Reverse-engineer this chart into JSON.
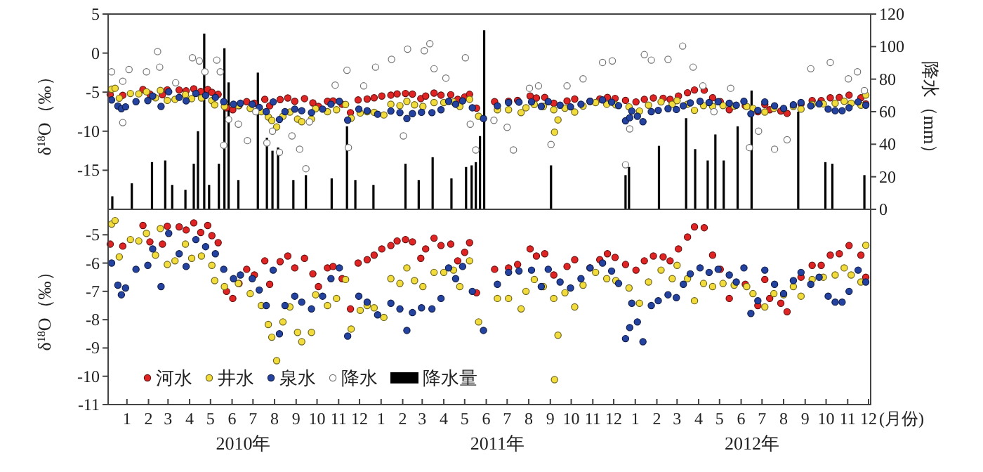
{
  "chart_data": [
    {
      "type": "scatter",
      "ylabel": "δ$^{18}$O（‰）",
      "y2label": "降水（mm）",
      "xlim": [
        "2009-12-05",
        "2012-12-04"
      ],
      "ylim": [
        -20,
        5
      ],
      "yticks": [
        5,
        0,
        -5,
        -10,
        -15
      ],
      "y2lim": [
        0,
        120
      ],
      "y2ticks": [
        0,
        20,
        40,
        60,
        80,
        100,
        120
      ],
      "tick_labels": "y",
      "legend": "bottom",
      "marker": "circle",
      "series": [
        {
          "name": "河水",
          "color": "#e02424",
          "x": [
            "2009-12-08",
            "2009-12-26",
            "2010-01-24",
            "2010-02-03",
            "2010-02-21",
            "2010-02-28",
            "2010-03-17",
            "2010-03-27",
            "2010-04-07",
            "2010-04-17",
            "2010-04-27",
            "2010-05-03",
            "2010-05-12",
            "2010-05-24",
            "2010-06-02",
            "2010-06-11",
            "2010-06-22",
            "2010-07-03",
            "2010-07-18",
            "2010-07-25",
            "2010-08-09",
            "2010-08-20",
            "2010-08-30",
            "2010-09-13",
            "2010-09-25",
            "2010-10-03",
            "2010-10-16",
            "2010-10-24",
            "2010-11-06",
            "2010-11-18",
            "2010-11-29",
            "2010-12-12",
            "2010-12-22",
            "2011-01-02",
            "2011-01-15",
            "2011-01-24",
            "2011-02-05",
            "2011-02-15",
            "2011-02-27",
            "2011-03-06",
            "2011-03-18",
            "2011-03-28",
            "2011-04-11",
            "2011-04-21",
            "2011-05-01",
            "2011-05-08",
            "2011-05-18",
            "2011-06-13",
            "2011-07-03",
            "2011-07-16",
            "2011-08-03",
            "2011-08-12",
            "2011-08-24",
            "2011-09-06",
            "2011-09-25",
            "2011-10-06",
            "2011-10-28",
            "2011-11-11",
            "2011-11-22",
            "2011-12-03",
            "2011-12-18",
            "2012-01-02",
            "2012-01-14",
            "2012-01-27",
            "2012-02-10",
            "2012-02-20",
            "2012-03-03",
            "2012-03-16",
            "2012-03-26",
            "2012-04-09",
            "2012-04-21",
            "2012-05-02",
            "2012-05-15",
            "2012-06-07",
            "2012-06-25",
            "2012-07-05",
            "2012-07-12",
            "2012-07-28",
            "2012-08-06",
            "2012-08-26",
            "2012-09-11",
            "2012-09-24",
            "2012-10-07",
            "2012-10-20",
            "2012-11-03",
            "2012-11-20",
            "2012-11-27"
          ],
          "values": [
            -5.33,
            -5.4,
            -4.67,
            -5.25,
            -5.33,
            -4.7,
            -4.72,
            -4.83,
            -4.58,
            -4.92,
            -4.67,
            -5.03,
            -5.28,
            -7.0,
            -7.25,
            -6.72,
            -6.22,
            -6.42,
            -5.92,
            -6.75,
            -5.95,
            -5.75,
            -6.17,
            -5.83,
            -6.38,
            -6.83,
            -6.17,
            -6.12,
            -6.55,
            -7.62,
            -6.0,
            -5.88,
            -5.72,
            -5.5,
            -5.38,
            -5.22,
            -5.17,
            -5.25,
            -5.83,
            -5.5,
            -5.12,
            -5.38,
            -5.33,
            -5.92,
            -5.62,
            -5.28,
            -7.05,
            -6.22,
            -6.17,
            -6.05,
            -5.5,
            -5.75,
            -5.67,
            -6.42,
            -6.12,
            -5.88,
            -6.17,
            -5.88,
            -5.67,
            -5.8,
            -6.05,
            -6.25,
            -5.92,
            -5.75,
            -5.78,
            -5.92,
            -5.5,
            -5.08,
            -4.72,
            -4.75,
            -5.72,
            -6.22,
            -7.25,
            -6.75,
            -7.5,
            -6.58,
            -7.25,
            -7.42,
            -7.72,
            -6.5,
            -6.08,
            -6.08,
            -5.72,
            -5.67,
            -5.38,
            -5.72,
            -6.5
          ]
        },
        {
          "name": "井水",
          "color": "#f2dc3c",
          "x": [
            "2009-12-10",
            "2009-12-15",
            "2009-12-21",
            "2010-01-06",
            "2010-01-18",
            "2010-01-29",
            "2010-02-11",
            "2010-02-18",
            "2010-02-28",
            "2010-03-11",
            "2010-03-26",
            "2010-04-04",
            "2010-04-18",
            "2010-05-03",
            "2010-05-07",
            "2010-05-21",
            "2010-06-10",
            "2010-06-27",
            "2010-07-13",
            "2010-07-23",
            "2010-07-28",
            "2010-08-04",
            "2010-08-13",
            "2010-08-23",
            "2010-09-03",
            "2010-09-09",
            "2010-09-23",
            "2010-09-29",
            "2010-10-16",
            "2010-10-29",
            "2010-11-11",
            "2010-11-19",
            "2010-12-02",
            "2010-12-12",
            "2010-12-22",
            "2011-01-05",
            "2011-01-15",
            "2011-01-28",
            "2011-02-07",
            "2011-02-18",
            "2011-03-02",
            "2011-03-18",
            "2011-04-01",
            "2011-04-15",
            "2011-04-24",
            "2011-05-08",
            "2011-05-21",
            "2011-06-17",
            "2011-07-03",
            "2011-07-21",
            "2011-07-28",
            "2011-08-09",
            "2011-08-22",
            "2011-09-06",
            "2011-09-12",
            "2011-09-07",
            "2011-09-22",
            "2011-10-06",
            "2011-10-18",
            "2011-11-05",
            "2011-11-21",
            "2011-12-04",
            "2011-12-23",
            "2012-01-07",
            "2012-01-20",
            "2012-02-07",
            "2012-02-23",
            "2012-03-01",
            "2012-03-16",
            "2012-03-26",
            "2012-04-08",
            "2012-04-21",
            "2012-05-06",
            "2012-05-22",
            "2012-06-09",
            "2012-06-18",
            "2012-07-05",
            "2012-07-18",
            "2012-08-01",
            "2012-08-15",
            "2012-08-26",
            "2012-09-11",
            "2012-09-27",
            "2012-10-14",
            "2012-10-27",
            "2012-11-06",
            "2012-11-20",
            "2012-11-27"
          ],
          "values": [
            -4.62,
            -4.5,
            -5.78,
            -5.17,
            -5.22,
            -4.95,
            -5.72,
            -4.78,
            -6.05,
            -5.92,
            -5.33,
            -5.83,
            -5.75,
            -6.08,
            -6.62,
            -6.83,
            -6.72,
            -7.08,
            -7.5,
            -8.17,
            -8.62,
            -9.45,
            -8.08,
            -7.55,
            -8.45,
            -8.78,
            -8.45,
            -7.12,
            -7.5,
            -7.25,
            -6.58,
            -8.33,
            -7.67,
            -7.5,
            -7.58,
            -7.92,
            -6.55,
            -6.72,
            -6.17,
            -6.62,
            -6.83,
            -6.33,
            -6.33,
            -6.25,
            -6.83,
            -5.92,
            -8.08,
            -7.25,
            -7.25,
            -7.62,
            -7.0,
            -6.58,
            -6.83,
            -7.25,
            -8.55,
            -10.12,
            -7.05,
            -7.55,
            -6.78,
            -6.33,
            -6.55,
            -6.62,
            -6.88,
            -7.42,
            -6.67,
            -6.25,
            -6.55,
            -6.08,
            -6.55,
            -7.33,
            -6.72,
            -6.83,
            -6.72,
            -6.78,
            -6.83,
            -7.08,
            -7.55,
            -7.08,
            -7.12,
            -6.83,
            -7.17,
            -6.58,
            -6.5,
            -6.42,
            -6.17,
            -6.42,
            -6.67,
            -5.37
          ]
        },
        {
          "name": "泉水",
          "color": "#2442a0",
          "x": [
            "2009-12-10",
            "2009-12-19",
            "2009-12-24",
            "2009-12-30",
            "2010-01-14",
            "2010-01-31",
            "2010-02-07",
            "2010-02-19",
            "2010-03-02",
            "2010-03-17",
            "2010-03-27",
            "2010-04-10",
            "2010-04-24",
            "2010-05-08",
            "2010-05-20",
            "2010-06-03",
            "2010-06-13",
            "2010-06-30",
            "2010-07-10",
            "2010-07-20",
            "2010-07-30",
            "2010-08-08",
            "2010-08-16",
            "2010-08-30",
            "2010-09-09",
            "2010-09-23",
            "2010-10-09",
            "2010-10-21",
            "2010-11-02",
            "2010-11-14",
            "2010-11-30",
            "2010-12-12",
            "2010-12-27",
            "2011-01-15",
            "2011-01-28",
            "2011-02-07",
            "2011-02-15",
            "2011-02-28",
            "2011-03-15",
            "2011-03-28",
            "2011-04-08",
            "2011-04-18",
            "2011-04-28",
            "2011-05-12",
            "2011-05-28",
            "2011-06-17",
            "2011-07-03",
            "2011-07-18",
            "2011-08-05",
            "2011-08-19",
            "2011-08-29",
            "2011-09-15",
            "2011-09-30",
            "2011-10-15",
            "2011-10-28",
            "2011-11-15",
            "2011-11-28",
            "2011-12-08",
            "2011-12-18",
            "2011-12-24",
            "2011-12-27",
            "2012-01-04",
            "2012-01-12",
            "2012-01-24",
            "2012-02-03",
            "2012-02-17",
            "2012-02-29",
            "2012-03-10",
            "2012-03-20",
            "2012-04-03",
            "2012-04-16",
            "2012-04-29",
            "2012-05-15",
            "2012-05-25",
            "2012-06-05",
            "2012-06-15",
            "2012-06-25",
            "2012-07-05",
            "2012-07-19",
            "2012-08-01",
            "2012-08-15",
            "2012-08-26",
            "2012-09-09",
            "2012-09-21",
            "2012-10-04",
            "2012-10-14",
            "2012-10-24",
            "2012-11-03",
            "2012-11-16",
            "2012-11-27"
          ],
          "values": [
            -6.0,
            -6.78,
            -7.12,
            -6.88,
            -6.22,
            -6.08,
            -5.5,
            -6.83,
            -4.95,
            -5.67,
            -6.12,
            -5.17,
            -5.42,
            -5.67,
            -6.22,
            -6.55,
            -6.42,
            -6.55,
            -6.95,
            -7.5,
            -6.25,
            -8.5,
            -7.5,
            -7.17,
            -7.38,
            -7.62,
            -7.17,
            -6.55,
            -6.17,
            -8.58,
            -7.17,
            -7.38,
            -7.83,
            -7.42,
            -7.62,
            -8.38,
            -7.75,
            -7.58,
            -7.62,
            -7.25,
            -6.17,
            -6.55,
            -6.12,
            -7.0,
            -8.38,
            -6.75,
            -6.33,
            -6.28,
            -6.25,
            -6.83,
            -6.22,
            -6.67,
            -6.88,
            -6.55,
            -6.17,
            -6.0,
            -6.28,
            -6.72,
            -8.67,
            -8.28,
            -7.42,
            -8.08,
            -8.78,
            -7.5,
            -7.33,
            -7.12,
            -7.22,
            -6.75,
            -6.38,
            -6.17,
            -6.33,
            -6.22,
            -6.42,
            -6.67,
            -6.17,
            -7.78,
            -7.33,
            -6.25,
            -6.75,
            -7.08,
            -6.62,
            -6.33,
            -6.75,
            -6.5,
            -7.17,
            -7.38,
            -7.38,
            -7.0,
            -6.25,
            -6.67
          ]
        },
        {
          "name": "降水",
          "color": "#ffffff",
          "x": [
            "2009-12-10",
            "2009-12-26",
            "2009-12-26",
            "2010-01-04",
            "2010-01-29",
            "2010-02-14",
            "2010-02-17",
            "2010-03-12",
            "2010-04-05",
            "2010-04-15",
            "2010-04-23",
            "2010-05-10",
            "2010-05-15",
            "2010-05-20",
            "2010-05-27",
            "2010-06-10",
            "2010-06-23",
            "2010-07-05",
            "2010-07-21",
            "2010-07-29",
            "2010-08-08",
            "2010-08-26",
            "2010-09-06",
            "2010-09-15",
            "2010-09-20",
            "2010-10-27",
            "2010-11-13",
            "2010-11-15",
            "2010-12-07",
            "2010-12-24",
            "2011-01-16",
            "2011-02-02",
            "2011-02-08",
            "2011-03-04",
            "2011-03-12",
            "2011-03-18",
            "2011-04-04",
            "2011-05-02",
            "2011-05-09",
            "2011-05-17",
            "2011-06-12",
            "2011-07-01",
            "2011-07-10",
            "2011-08-02",
            "2011-08-15",
            "2011-09-02",
            "2011-09-25",
            "2011-10-18",
            "2011-11-15",
            "2011-11-29",
            "2011-12-18",
            "2011-12-24",
            "2012-01-14",
            "2012-01-24",
            "2012-02-17",
            "2012-03-09",
            "2012-03-24",
            "2012-04-07",
            "2012-04-23",
            "2012-05-17",
            "2012-06-13",
            "2012-06-26",
            "2012-07-19",
            "2012-08-06",
            "2012-09-09",
            "2012-10-07",
            "2012-11-02",
            "2012-11-15",
            "2012-11-25"
          ],
          "values": [
            -2.4,
            -3.6,
            -8.9,
            -2.1,
            -2.4,
            0.2,
            -1.8,
            -3.8,
            -0.6,
            -1.0,
            -2.4,
            -0.9,
            -2.4,
            -11.8,
            -8.5,
            -9.1,
            -11.2,
            -7.5,
            -11.5,
            -10.0,
            -12.7,
            -10.6,
            -12.3,
            -14.8,
            -8.8,
            -4.1,
            -2.2,
            -12.1,
            -4.2,
            -1.8,
            -0.8,
            -10.6,
            0.5,
            0.3,
            1.2,
            -2.0,
            -3.2,
            -0.6,
            -9.1,
            -12.4,
            -8.6,
            -9.5,
            -12.4,
            -4.5,
            -4.2,
            -11.7,
            -4.2,
            -3.3,
            -1.2,
            -1.0,
            -14.3,
            -9.7,
            -0.2,
            -0.9,
            -0.8,
            0.9,
            -1.8,
            -4.2,
            -7.5,
            -4.5,
            -12.1,
            -10.0,
            -12.3,
            -11.1,
            -2.0,
            -1.2,
            -3.3,
            -2.4,
            -4.8
          ]
        },
        {
          "name": "降水量",
          "type": "bar",
          "axis": "y2",
          "color": "#000000",
          "x": [
            "2009-12-11",
            "2010-01-08",
            "2010-02-06",
            "2010-02-25",
            "2010-03-07",
            "2010-03-26",
            "2010-04-07",
            "2010-04-13",
            "2010-04-22",
            "2010-04-29",
            "2010-05-13",
            "2010-05-21",
            "2010-05-27",
            "2010-06-10",
            "2010-07-08",
            "2010-07-21",
            "2010-07-29",
            "2010-08-06",
            "2010-08-28",
            "2010-09-15",
            "2010-10-22",
            "2010-11-13",
            "2010-11-25",
            "2010-12-21",
            "2011-02-05",
            "2011-02-24",
            "2011-03-16",
            "2011-04-12",
            "2011-05-03",
            "2011-05-11",
            "2011-05-17",
            "2011-05-23",
            "2011-05-29",
            "2011-09-02",
            "2011-12-18",
            "2011-12-23",
            "2012-02-04",
            "2012-03-14",
            "2012-03-27",
            "2012-04-14",
            "2012-04-25",
            "2012-05-07",
            "2012-05-27",
            "2012-06-16",
            "2012-08-22",
            "2012-09-30",
            "2012-10-10",
            "2012-11-25"
          ],
          "values": [
            8,
            16,
            29,
            30,
            15,
            12,
            28,
            48,
            108,
            15,
            28,
            99,
            78,
            18,
            84,
            44,
            36,
            38,
            18,
            21,
            19,
            51,
            18,
            15,
            28,
            18,
            32,
            19,
            26,
            27,
            29,
            45,
            110,
            27,
            21,
            26,
            39,
            56,
            37,
            30,
            46,
            30,
            51,
            73,
            60,
            29,
            28,
            21
          ]
        }
      ]
    },
    {
      "type": "scatter",
      "ylabel": "δ$^{18}$O（‰）",
      "xlabel": "(月份)",
      "xlim": [
        "2009-12-05",
        "2012-12-04"
      ],
      "ylim": [
        -11,
        -4.1
      ],
      "yticks": [
        -5,
        -6,
        -7,
        -8,
        -9,
        -10,
        -11
      ],
      "marker": "circle",
      "xticks": [
        {
          "value": "2010-01",
          "label": "1"
        },
        {
          "value": "2010-02",
          "label": "2"
        },
        {
          "value": "2010-03",
          "label": "3"
        },
        {
          "value": "2010-04",
          "label": "4"
        },
        {
          "value": "2010-05",
          "label": "5"
        },
        {
          "value": "2010-06",
          "label": "6"
        },
        {
          "value": "2010-07",
          "label": "7"
        },
        {
          "value": "2010-08",
          "label": "8"
        },
        {
          "value": "2010-09",
          "label": "9"
        },
        {
          "value": "2010-10",
          "label": "10"
        },
        {
          "value": "2010-11",
          "label": "11"
        },
        {
          "value": "2010-12",
          "label": "12"
        },
        {
          "value": "2011-01",
          "label": "1"
        },
        {
          "value": "2011-02",
          "label": "2"
        },
        {
          "value": "2011-03",
          "label": "3"
        },
        {
          "value": "2011-04",
          "label": "4"
        },
        {
          "value": "2011-05",
          "label": "5"
        },
        {
          "value": "2011-06",
          "label": "6"
        },
        {
          "value": "2011-07",
          "label": "7"
        },
        {
          "value": "2011-08",
          "label": "8"
        },
        {
          "value": "2011-09",
          "label": "9"
        },
        {
          "value": "2011-10",
          "label": "10"
        },
        {
          "value": "2011-11",
          "label": "11"
        },
        {
          "value": "2011-12",
          "label": "12"
        },
        {
          "value": "2012-01",
          "label": "1"
        },
        {
          "value": "2012-02",
          "label": "2"
        },
        {
          "value": "2012-03",
          "label": "3"
        },
        {
          "value": "2012-04",
          "label": "4"
        },
        {
          "value": "2012-05",
          "label": "5"
        },
        {
          "value": "2012-06",
          "label": "6"
        },
        {
          "value": "2012-07",
          "label": "7"
        },
        {
          "value": "2012-08",
          "label": "8"
        },
        {
          "value": "2012-09",
          "label": "9"
        },
        {
          "value": "2012-10",
          "label": "10"
        },
        {
          "value": "2012-11",
          "label": "11"
        },
        {
          "value": "2012-12",
          "label": "12"
        }
      ],
      "annotations": [
        "2010年",
        "2011年",
        "2012年"
      ],
      "series": [
        {
          "color": "#e02424",
          "x": [
            "2009-12-08",
            "2009-12-26",
            "2010-01-24",
            "2010-02-03",
            "2010-02-21",
            "2010-02-28",
            "2010-03-17",
            "2010-03-27",
            "2010-04-07",
            "2010-04-17",
            "2010-04-27",
            "2010-05-03",
            "2010-05-12",
            "2010-05-24",
            "2010-06-02",
            "2010-06-11",
            "2010-06-22",
            "2010-07-03",
            "2010-07-18",
            "2010-07-25",
            "2010-08-09",
            "2010-08-20",
            "2010-08-30",
            "2010-09-13",
            "2010-09-25",
            "2010-10-03",
            "2010-10-16",
            "2010-10-24",
            "2010-11-06",
            "2010-11-18",
            "2010-11-29",
            "2010-12-12",
            "2010-12-22",
            "2011-01-02",
            "2011-01-15",
            "2011-01-24",
            "2011-02-05",
            "2011-02-15",
            "2011-02-27",
            "2011-03-06",
            "2011-03-18",
            "2011-03-28",
            "2011-04-11",
            "2011-04-21",
            "2011-05-01",
            "2011-05-08",
            "2011-05-18",
            "2011-06-13",
            "2011-07-03",
            "2011-07-16",
            "2011-08-03",
            "2011-08-12",
            "2011-08-24",
            "2011-09-06",
            "2011-09-25",
            "2011-10-06",
            "2011-10-28",
            "2011-11-11",
            "2011-11-22",
            "2011-12-03",
            "2011-12-18",
            "2012-01-02",
            "2012-01-14",
            "2012-01-27",
            "2012-02-10",
            "2012-02-20",
            "2012-03-03",
            "2012-03-16",
            "2012-03-26",
            "2012-04-09",
            "2012-04-21",
            "2012-05-02",
            "2012-05-15",
            "2012-06-07",
            "2012-06-25",
            "2012-07-05",
            "2012-07-12",
            "2012-07-28",
            "2012-08-06",
            "2012-08-26",
            "2012-09-11",
            "2012-09-24",
            "2012-10-07",
            "2012-10-20",
            "2012-11-03",
            "2012-11-20",
            "2012-11-27"
          ],
          "values": [
            -5.33,
            -5.4,
            -4.67,
            -5.25,
            -5.33,
            -4.7,
            -4.72,
            -4.83,
            -4.58,
            -4.92,
            -4.67,
            -5.03,
            -5.28,
            -7.0,
            -7.25,
            -6.72,
            -6.22,
            -6.42,
            -5.92,
            -6.75,
            -5.95,
            -5.75,
            -6.17,
            -5.83,
            -6.38,
            -6.83,
            -6.17,
            -6.12,
            -6.55,
            -7.62,
            -6.0,
            -5.88,
            -5.72,
            -5.5,
            -5.38,
            -5.22,
            -5.17,
            -5.25,
            -5.83,
            -5.5,
            -5.12,
            -5.38,
            -5.33,
            -5.92,
            -5.62,
            -5.28,
            -7.05,
            -6.22,
            -6.17,
            -6.05,
            -5.5,
            -5.75,
            -5.67,
            -6.42,
            -6.12,
            -5.88,
            -6.17,
            -5.88,
            -5.67,
            -5.8,
            -6.05,
            -6.25,
            -5.92,
            -5.75,
            -5.78,
            -5.92,
            -5.5,
            -5.08,
            -4.72,
            -4.75,
            -5.72,
            -6.22,
            -7.25,
            -6.75,
            -7.5,
            -6.58,
            -7.25,
            -7.42,
            -7.72,
            -6.5,
            -6.08,
            -6.08,
            -5.72,
            -5.67,
            -5.38,
            -5.72,
            -6.5
          ]
        },
        {
          "color": "#f2dc3c",
          "x": [
            "2009-12-10",
            "2009-12-15",
            "2009-12-21",
            "2010-01-06",
            "2010-01-18",
            "2010-01-29",
            "2010-02-11",
            "2010-02-18",
            "2010-02-28",
            "2010-03-11",
            "2010-03-26",
            "2010-04-04",
            "2010-04-18",
            "2010-05-03",
            "2010-05-07",
            "2010-05-21",
            "2010-06-10",
            "2010-06-27",
            "2010-07-13",
            "2010-07-23",
            "2010-07-28",
            "2010-08-04",
            "2010-08-13",
            "2010-08-23",
            "2010-09-03",
            "2010-09-09",
            "2010-09-23",
            "2010-09-29",
            "2010-10-16",
            "2010-10-29",
            "2010-11-11",
            "2010-11-19",
            "2010-12-02",
            "2010-12-12",
            "2010-12-22",
            "2011-01-05",
            "2011-01-15",
            "2011-01-28",
            "2011-02-07",
            "2011-02-18",
            "2011-03-02",
            "2011-03-18",
            "2011-04-01",
            "2011-04-15",
            "2011-04-24",
            "2011-05-08",
            "2011-05-21",
            "2011-06-17",
            "2011-07-03",
            "2011-07-21",
            "2011-07-28",
            "2011-08-09",
            "2011-08-22",
            "2011-09-06",
            "2011-09-12",
            "2011-09-07",
            "2011-09-22",
            "2011-10-06",
            "2011-10-18",
            "2011-11-05",
            "2011-11-21",
            "2011-12-04",
            "2011-12-23",
            "2012-01-07",
            "2012-01-20",
            "2012-02-07",
            "2012-02-23",
            "2012-03-01",
            "2012-03-16",
            "2012-03-26",
            "2012-04-08",
            "2012-04-21",
            "2012-05-06",
            "2012-05-22",
            "2012-06-09",
            "2012-06-18",
            "2012-07-05",
            "2012-07-18",
            "2012-08-01",
            "2012-08-15",
            "2012-08-26",
            "2012-09-11",
            "2012-09-27",
            "2012-10-14",
            "2012-10-27",
            "2012-11-06",
            "2012-11-20",
            "2012-11-27"
          ],
          "values": [
            -4.62,
            -4.5,
            -5.78,
            -5.17,
            -5.22,
            -4.95,
            -5.72,
            -4.78,
            -6.05,
            -5.92,
            -5.33,
            -5.83,
            -5.75,
            -6.08,
            -6.62,
            -6.83,
            -6.72,
            -7.08,
            -7.5,
            -8.17,
            -8.62,
            -9.45,
            -8.08,
            -7.55,
            -8.45,
            -8.78,
            -8.45,
            -7.12,
            -7.5,
            -7.25,
            -6.58,
            -8.33,
            -7.67,
            -7.5,
            -7.58,
            -7.92,
            -6.55,
            -6.72,
            -6.17,
            -6.62,
            -6.83,
            -6.33,
            -6.33,
            -6.25,
            -6.83,
            -5.92,
            -8.08,
            -7.25,
            -7.25,
            -7.62,
            -7.0,
            -6.58,
            -6.83,
            -7.25,
            -8.55,
            -10.12,
            -7.05,
            -7.55,
            -6.78,
            -6.33,
            -6.55,
            -6.62,
            -6.88,
            -7.42,
            -6.67,
            -6.25,
            -6.55,
            -6.08,
            -6.55,
            -7.33,
            -6.72,
            -6.83,
            -6.72,
            -6.78,
            -6.83,
            -7.08,
            -7.55,
            -7.08,
            -7.12,
            -6.83,
            -7.17,
            -6.58,
            -6.5,
            -6.42,
            -6.17,
            -6.42,
            -6.67,
            -5.37
          ]
        },
        {
          "color": "#2442a0",
          "x": [
            "2009-12-10",
            "2009-12-19",
            "2009-12-24",
            "2009-12-30",
            "2010-01-14",
            "2010-01-31",
            "2010-02-07",
            "2010-02-19",
            "2010-03-02",
            "2010-03-17",
            "2010-03-27",
            "2010-04-10",
            "2010-04-24",
            "2010-05-08",
            "2010-05-20",
            "2010-06-03",
            "2010-06-13",
            "2010-06-30",
            "2010-07-10",
            "2010-07-20",
            "2010-07-30",
            "2010-08-08",
            "2010-08-16",
            "2010-08-30",
            "2010-09-09",
            "2010-09-23",
            "2010-10-09",
            "2010-10-21",
            "2010-11-02",
            "2010-11-14",
            "2010-11-30",
            "2010-12-12",
            "2010-12-27",
            "2011-01-15",
            "2011-01-28",
            "2011-02-07",
            "2011-02-15",
            "2011-02-28",
            "2011-03-15",
            "2011-03-28",
            "2011-04-08",
            "2011-04-18",
            "2011-04-28",
            "2011-05-12",
            "2011-05-28",
            "2011-06-17",
            "2011-07-03",
            "2011-07-18",
            "2011-08-05",
            "2011-08-19",
            "2011-08-29",
            "2011-09-15",
            "2011-09-30",
            "2011-10-15",
            "2011-10-28",
            "2011-11-15",
            "2011-11-28",
            "2011-12-08",
            "2011-12-18",
            "2011-12-24",
            "2011-12-27",
            "2012-01-04",
            "2012-01-12",
            "2012-01-24",
            "2012-02-03",
            "2012-02-17",
            "2012-02-29",
            "2012-03-10",
            "2012-03-20",
            "2012-04-03",
            "2012-04-16",
            "2012-04-29",
            "2012-05-15",
            "2012-05-25",
            "2012-06-05",
            "2012-06-15",
            "2012-06-25",
            "2012-07-05",
            "2012-07-19",
            "2012-08-01",
            "2012-08-15",
            "2012-08-26",
            "2012-09-09",
            "2012-09-21",
            "2012-10-04",
            "2012-10-14",
            "2012-10-24",
            "2012-11-03",
            "2012-11-16",
            "2012-11-27"
          ],
          "values": [
            -6.0,
            -6.78,
            -7.12,
            -6.88,
            -6.22,
            -6.08,
            -5.5,
            -6.83,
            -4.95,
            -5.67,
            -6.12,
            -5.17,
            -5.42,
            -5.67,
            -6.22,
            -6.55,
            -6.42,
            -6.55,
            -6.95,
            -7.5,
            -6.25,
            -8.5,
            -7.5,
            -7.17,
            -7.38,
            -7.62,
            -7.17,
            -6.55,
            -6.17,
            -8.58,
            -7.17,
            -7.38,
            -7.83,
            -7.42,
            -7.62,
            -8.38,
            -7.75,
            -7.58,
            -7.62,
            -7.25,
            -6.17,
            -6.55,
            -6.12,
            -7.0,
            -8.38,
            -6.75,
            -6.33,
            -6.28,
            -6.25,
            -6.83,
            -6.22,
            -6.67,
            -6.88,
            -6.55,
            -6.17,
            -6.0,
            -6.28,
            -6.72,
            -8.67,
            -8.28,
            -7.42,
            -8.08,
            -8.78,
            -7.5,
            -7.33,
            -7.12,
            -7.22,
            -6.75,
            -6.38,
            -6.17,
            -6.33,
            -6.22,
            -6.42,
            -6.67,
            -6.17,
            -7.78,
            -7.33,
            -6.25,
            -6.75,
            -7.08,
            -6.62,
            -6.33,
            -6.75,
            -6.5,
            -7.17,
            -7.38,
            -7.38,
            -7.0,
            -6.25,
            -6.67
          ]
        }
      ]
    }
  ]
}
